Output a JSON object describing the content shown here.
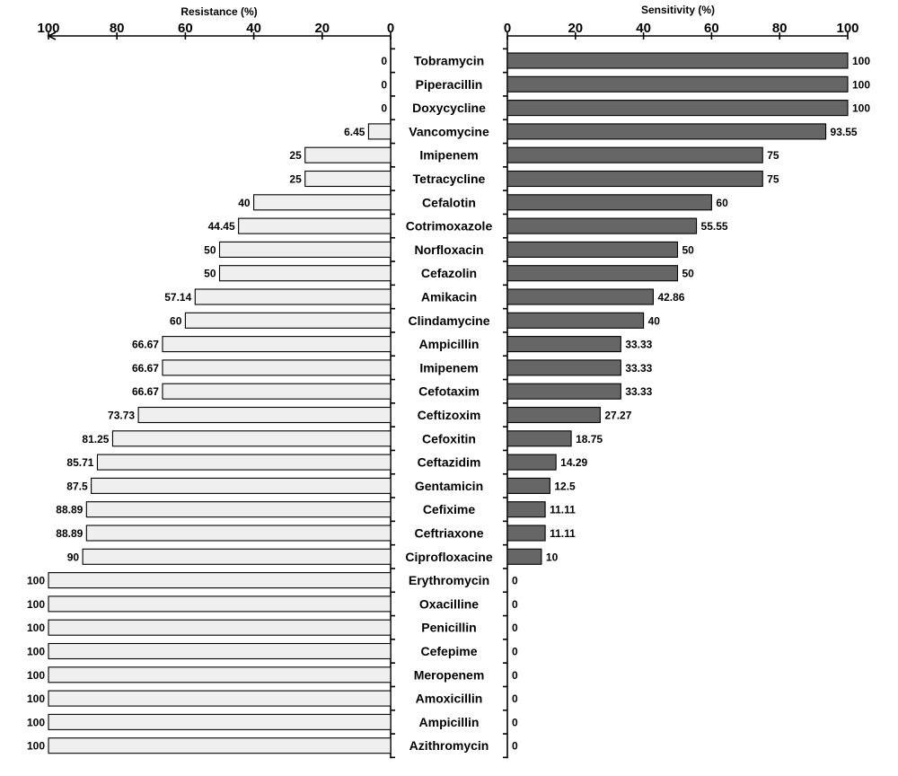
{
  "chart_data": {
    "type": "bar",
    "orientation": "horizontal",
    "categories": [
      "Tobramycin",
      "Piperacillin",
      "Doxycycline",
      "Vancomycine",
      "Imipenem",
      "Tetracycline",
      "Cefalotin",
      "Cotrimoxazole",
      "Norfloxacin",
      "Cefazolin",
      "Amikacin",
      "Clindamycine",
      "Ampicillin",
      "Imipenem",
      "Cefotaxim",
      "Ceftizoxim",
      "Cefoxitin",
      "Ceftazidim",
      "Gentamicin",
      "Cefixime",
      "Ceftriaxone",
      "Ciprofloxacine",
      "Erythromycin",
      "Oxacilline",
      "Penicillin",
      "Cefepime",
      "Meropenem",
      "Amoxicillin",
      "Ampicillin",
      "Azithromycin"
    ],
    "series": [
      {
        "name": "Resistance (%)",
        "color": "#efefef",
        "values": [
          0,
          0,
          0,
          6.45,
          25,
          25,
          40,
          44.45,
          50,
          50,
          57.14,
          60,
          66.67,
          66.67,
          66.67,
          73.73,
          81.25,
          85.71,
          87.5,
          88.89,
          88.89,
          90,
          100,
          100,
          100,
          100,
          100,
          100,
          100,
          100
        ]
      },
      {
        "name": "Sensitivity (%)",
        "color": "#666666",
        "values": [
          100,
          100,
          100,
          93.55,
          75,
          75,
          60,
          55.55,
          50,
          50,
          42.86,
          40,
          33.33,
          33.33,
          33.33,
          27.27,
          18.75,
          14.29,
          12.5,
          11.11,
          11.11,
          10,
          0,
          0,
          0,
          0,
          0,
          0,
          0,
          0
        ]
      }
    ],
    "left_axis": {
      "title": "Resistance (%)",
      "range": [
        0,
        100
      ],
      "reversed": true,
      "ticks": [
        "100",
        "80",
        "60",
        "40",
        "20",
        "0"
      ]
    },
    "right_axis": {
      "title": "Sensitivity (%)",
      "range": [
        0,
        100
      ],
      "reversed": false,
      "ticks": [
        "0",
        "20",
        "40",
        "60",
        "80",
        "100"
      ]
    },
    "grid": false
  }
}
